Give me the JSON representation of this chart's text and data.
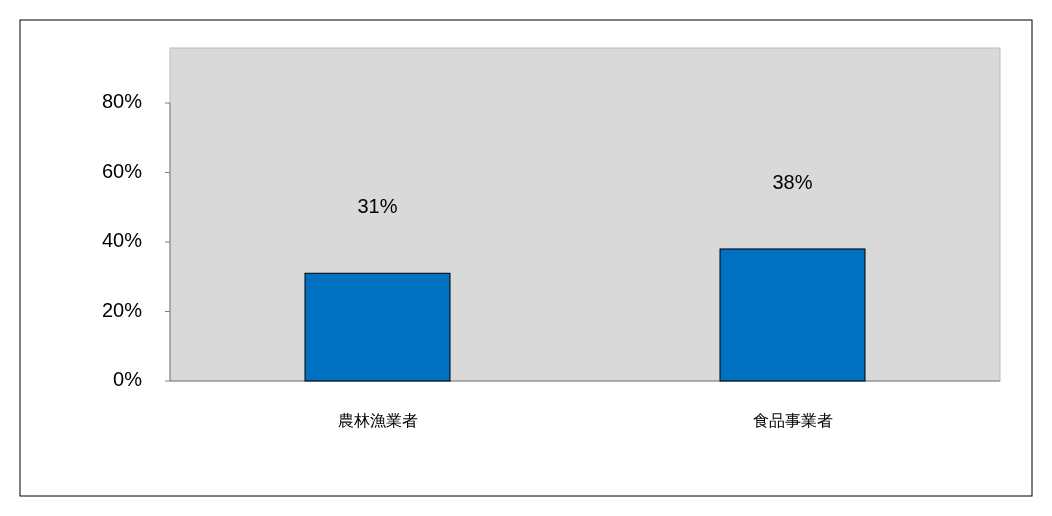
{
  "chart_data": {
    "type": "bar",
    "categories": [
      "農林漁業者",
      "食品事業者"
    ],
    "values": [
      31,
      38
    ],
    "color": "#0070c0",
    "value_labels": [
      "31%",
      "38%"
    ],
    "ylim": [
      0,
      80
    ],
    "yticks": [
      {
        "value": 0,
        "label": "0%"
      },
      {
        "value": 20,
        "label": "20%"
      },
      {
        "value": 40,
        "label": "40%"
      },
      {
        "value": 60,
        "label": "60%"
      },
      {
        "value": 80,
        "label": "80%"
      }
    ]
  }
}
